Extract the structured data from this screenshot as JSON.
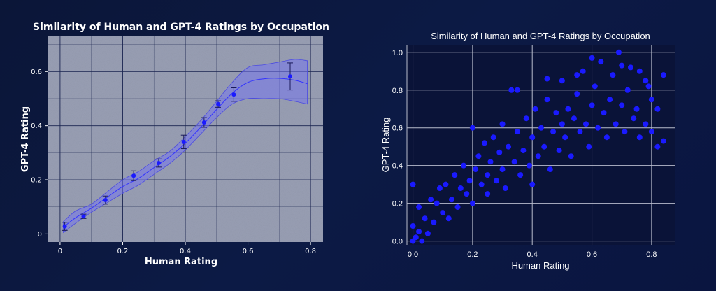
{
  "colors": {
    "background": "#0b1638",
    "left_panel_bg": "#9aa0b5",
    "left_grid": "#1a2450",
    "right_panel_bg": "#0a1338",
    "right_grid": "#b8bccc",
    "point": "#1a1aff",
    "band": "#7777ee",
    "text": "#ffffff"
  },
  "chart_data": [
    {
      "type": "line",
      "title": "Similarity of Human and GPT-4 Ratings by Occupation",
      "xlabel": "Human Rating",
      "ylabel": "GPT-4 Rating",
      "xlim": [
        -0.04,
        0.84
      ],
      "ylim": [
        -0.03,
        0.73
      ],
      "xticks": [
        "0",
        "0.2",
        "0.4",
        "0.6",
        "0.8"
      ],
      "yticks": [
        "0",
        "0.2",
        "0.4",
        "0.6"
      ],
      "grid": true,
      "points": [
        {
          "x": 0.015,
          "y": 0.028,
          "err": 0.015
        },
        {
          "x": 0.075,
          "y": 0.065,
          "err": 0.008
        },
        {
          "x": 0.145,
          "y": 0.125,
          "err": 0.015
        },
        {
          "x": 0.235,
          "y": 0.215,
          "err": 0.018
        },
        {
          "x": 0.315,
          "y": 0.262,
          "err": 0.015
        },
        {
          "x": 0.395,
          "y": 0.34,
          "err": 0.025
        },
        {
          "x": 0.46,
          "y": 0.412,
          "err": 0.018
        },
        {
          "x": 0.505,
          "y": 0.48,
          "err": 0.012
        },
        {
          "x": 0.555,
          "y": 0.515,
          "err": 0.025
        },
        {
          "x": 0.735,
          "y": 0.582,
          "err": 0.05
        }
      ],
      "fit_line": {
        "x": [
          0.01,
          0.05,
          0.1,
          0.15,
          0.2,
          0.25,
          0.3,
          0.35,
          0.4,
          0.45,
          0.5,
          0.55,
          0.6,
          0.65,
          0.7,
          0.75,
          0.79
        ],
        "y": [
          0.025,
          0.06,
          0.095,
          0.135,
          0.175,
          0.205,
          0.245,
          0.285,
          0.335,
          0.395,
          0.46,
          0.52,
          0.56,
          0.573,
          0.575,
          0.568,
          0.555
        ],
        "lower": [
          0.005,
          0.04,
          0.08,
          0.115,
          0.15,
          0.18,
          0.22,
          0.26,
          0.31,
          0.37,
          0.43,
          0.48,
          0.5,
          0.5,
          0.5,
          0.49,
          0.48
        ],
        "upper": [
          0.045,
          0.085,
          0.11,
          0.155,
          0.2,
          0.23,
          0.27,
          0.305,
          0.36,
          0.42,
          0.49,
          0.56,
          0.615,
          0.625,
          0.635,
          0.645,
          0.64
        ]
      }
    },
    {
      "type": "scatter",
      "title": "Similarity of Human and GPT-4 Ratings by Occupation",
      "xlabel": "Human Rating",
      "ylabel": "GPT-4 Rating",
      "xlim": [
        -0.02,
        0.88
      ],
      "ylim": [
        -0.02,
        1.04
      ],
      "xticks": [
        "0.0",
        "0.2",
        "0.4",
        "0.6",
        "0.8"
      ],
      "yticks": [
        "0.0",
        "0.2",
        "0.4",
        "0.6",
        "0.8",
        "1.0"
      ],
      "grid": true,
      "points": [
        [
          0.0,
          0.0
        ],
        [
          0.01,
          0.02
        ],
        [
          0.02,
          0.05
        ],
        [
          0.0,
          0.08
        ],
        [
          0.03,
          0.0
        ],
        [
          0.04,
          0.12
        ],
        [
          0.02,
          0.18
        ],
        [
          0.05,
          0.04
        ],
        [
          0.0,
          0.3
        ],
        [
          0.06,
          0.22
        ],
        [
          0.07,
          0.1
        ],
        [
          0.08,
          0.2
        ],
        [
          0.1,
          0.15
        ],
        [
          0.09,
          0.28
        ],
        [
          0.12,
          0.12
        ],
        [
          0.11,
          0.3
        ],
        [
          0.13,
          0.22
        ],
        [
          0.14,
          0.35
        ],
        [
          0.15,
          0.18
        ],
        [
          0.16,
          0.28
        ],
        [
          0.17,
          0.4
        ],
        [
          0.18,
          0.25
        ],
        [
          0.19,
          0.32
        ],
        [
          0.2,
          0.6
        ],
        [
          0.2,
          0.2
        ],
        [
          0.21,
          0.38
        ],
        [
          0.22,
          0.45
        ],
        [
          0.23,
          0.3
        ],
        [
          0.24,
          0.52
        ],
        [
          0.25,
          0.35
        ],
        [
          0.25,
          0.25
        ],
        [
          0.26,
          0.42
        ],
        [
          0.27,
          0.55
        ],
        [
          0.28,
          0.32
        ],
        [
          0.29,
          0.47
        ],
        [
          0.3,
          0.38
        ],
        [
          0.3,
          0.62
        ],
        [
          0.31,
          0.28
        ],
        [
          0.32,
          0.5
        ],
        [
          0.33,
          0.8
        ],
        [
          0.34,
          0.42
        ],
        [
          0.35,
          0.58
        ],
        [
          0.36,
          0.35
        ],
        [
          0.37,
          0.48
        ],
        [
          0.38,
          0.65
        ],
        [
          0.39,
          0.4
        ],
        [
          0.4,
          0.55
        ],
        [
          0.4,
          0.3
        ],
        [
          0.41,
          0.7
        ],
        [
          0.42,
          0.45
        ],
        [
          0.43,
          0.6
        ],
        [
          0.44,
          0.5
        ],
        [
          0.45,
          0.75
        ],
        [
          0.46,
          0.38
        ],
        [
          0.47,
          0.58
        ],
        [
          0.48,
          0.68
        ],
        [
          0.49,
          0.48
        ],
        [
          0.5,
          0.62
        ],
        [
          0.5,
          0.85
        ],
        [
          0.51,
          0.55
        ],
        [
          0.52,
          0.7
        ],
        [
          0.53,
          0.45
        ],
        [
          0.54,
          0.65
        ],
        [
          0.55,
          0.78
        ],
        [
          0.56,
          0.58
        ],
        [
          0.57,
          0.9
        ],
        [
          0.58,
          0.62
        ],
        [
          0.59,
          0.5
        ],
        [
          0.6,
          0.72
        ],
        [
          0.61,
          0.82
        ],
        [
          0.62,
          0.6
        ],
        [
          0.63,
          0.95
        ],
        [
          0.64,
          0.68
        ],
        [
          0.65,
          0.55
        ],
        [
          0.66,
          0.75
        ],
        [
          0.67,
          0.88
        ],
        [
          0.68,
          0.62
        ],
        [
          0.69,
          1.0
        ],
        [
          0.7,
          0.72
        ],
        [
          0.71,
          0.58
        ],
        [
          0.72,
          0.8
        ],
        [
          0.73,
          0.92
        ],
        [
          0.74,
          0.65
        ],
        [
          0.75,
          0.7
        ],
        [
          0.76,
          0.55
        ],
        [
          0.78,
          0.62
        ],
        [
          0.8,
          0.58
        ],
        [
          0.82,
          0.7
        ],
        [
          0.84,
          0.88
        ],
        [
          0.84,
          0.53
        ],
        [
          0.82,
          0.5
        ],
        [
          0.8,
          0.75
        ],
        [
          0.78,
          0.85
        ],
        [
          0.76,
          0.9
        ],
        [
          0.79,
          0.82
        ],
        [
          0.7,
          0.93
        ],
        [
          0.6,
          0.97
        ],
        [
          0.55,
          0.88
        ],
        [
          0.45,
          0.86
        ],
        [
          0.35,
          0.8
        ]
      ]
    }
  ]
}
